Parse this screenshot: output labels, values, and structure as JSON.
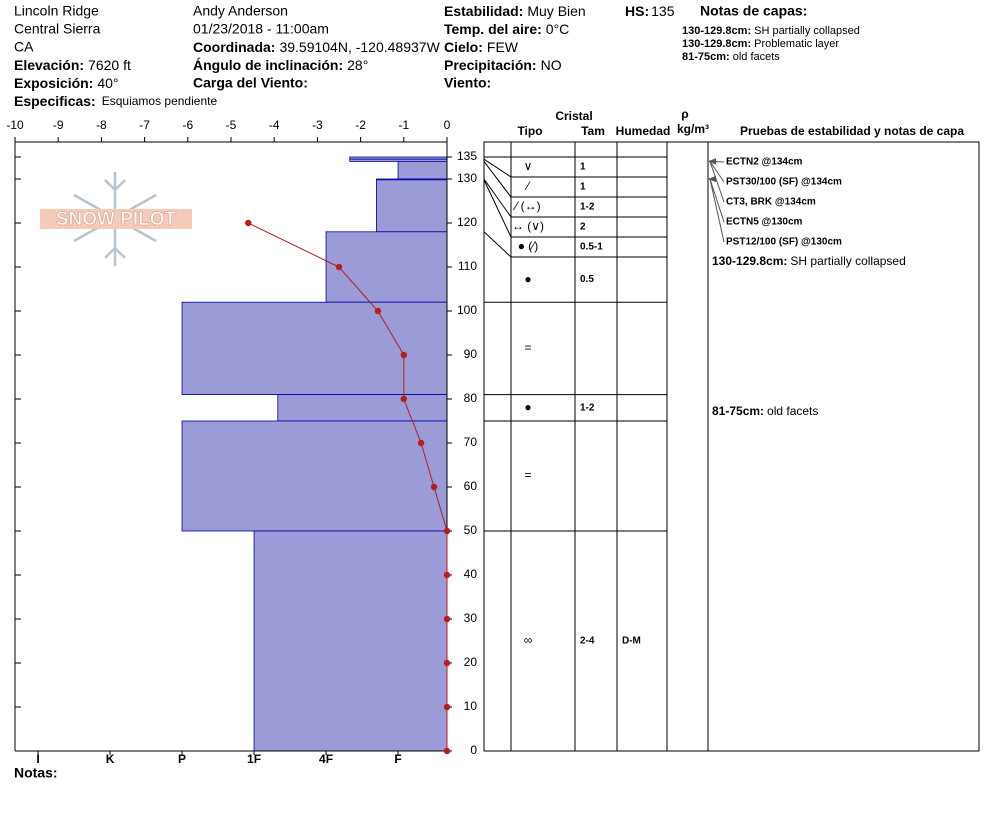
{
  "header": {
    "location": "Lincoln Ridge",
    "range": "Central Sierra",
    "state": "CA",
    "elevation_label": "Elevación:",
    "elevation": "7620 ft",
    "aspect_label": "Exposición:",
    "aspect": "40°",
    "specifics_label": "Especificas:",
    "specifics": "Esquiamos pendiente",
    "observer": "Andy Anderson",
    "datetime": "01/23/2018 - 11:00am",
    "coord_label": "Coordinada:",
    "coord": "39.59104N, -120.48937W",
    "slope_label": "Ángulo de inclinación:",
    "slope": "28°",
    "wind_load_label": "Carga del Viento:",
    "stability_label": "Estabilidad:",
    "stability": "Muy Bien",
    "air_temp_label": "Temp. del aire:",
    "air_temp": "0°C",
    "sky_label": "Cielo:",
    "sky": "FEW",
    "precip_label": "Precipitación:",
    "precip": "NO",
    "wind_label": "Viento:",
    "hs_label": "HS:",
    "hs": "135",
    "notes_title": "Notas de capas:",
    "layer_notes": [
      {
        "range": "130-129.8cm:",
        "text": "SH partially collapsed"
      },
      {
        "range": "130-129.8cm:",
        "text": "Problematic layer"
      },
      {
        "range": "81-75cm:",
        "text": "old facets"
      }
    ],
    "logo": "SNOW PILOT"
  },
  "chart_data": {
    "type": "snow_profile",
    "xlim": [
      -10,
      0
    ],
    "xticks": [
      -10,
      -9,
      -8,
      -7,
      -6,
      -5,
      -4,
      -3,
      -2,
      -1,
      0
    ],
    "ylim": [
      0,
      135
    ],
    "yticks": [
      0,
      10,
      20,
      30,
      40,
      50,
      60,
      70,
      80,
      90,
      100,
      110,
      120,
      130,
      135
    ],
    "hardness_lim": [
      6.32,
      0.32
    ],
    "hardness_ticks": [
      {
        "value": 6,
        "label": "I"
      },
      {
        "value": 5,
        "label": "K"
      },
      {
        "value": 4,
        "label": "P"
      },
      {
        "value": 3,
        "label": "1F"
      },
      {
        "value": 2,
        "label": "4F"
      },
      {
        "value": 1,
        "label": "F"
      }
    ],
    "bar_color": "#9b9bd7",
    "bar_edge": "#0000a0",
    "temperature": {
      "color": "#b81c1c",
      "heights": [
        120,
        110,
        100,
        90,
        80,
        70,
        60,
        50,
        40,
        30,
        20,
        10,
        0
      ],
      "values": [
        -4.6,
        -2.5,
        -1.6,
        -1.0,
        -1.0,
        -0.6,
        -0.3,
        0,
        0,
        0,
        0,
        0,
        0
      ]
    },
    "columns": {
      "crystal": "Cristal",
      "type": "Tipo",
      "size": "Tam",
      "moisture": "Humedad",
      "density": "ρ",
      "density_unit": "kg/m³",
      "tests": "Pruebas de estabilidad y notas de capa"
    },
    "layers": [
      {
        "top": 135,
        "bottom": 134.5,
        "hardness": 1.67,
        "grain": "∨",
        "size": "1"
      },
      {
        "top": 134.5,
        "bottom": 134,
        "hardness": 1.67,
        "grain": "⁄",
        "size": "1"
      },
      {
        "top": 134,
        "bottom": 130,
        "hardness": 1,
        "grain": "⁄ (↔)",
        "size": "1-2"
      },
      {
        "top": 130,
        "bottom": 129.8,
        "hardness": 1.3,
        "grain": "↔ (∨)",
        "size": "2"
      },
      {
        "top": 129.8,
        "bottom": 118,
        "hardness": 1.3,
        "grain": "● (⁄)",
        "size": "0.5-1"
      },
      {
        "top": 118,
        "bottom": 102,
        "hardness": 2,
        "grain": "●",
        "size": "0.5"
      },
      {
        "top": 102,
        "bottom": 81,
        "hardness": 4,
        "grain": "="
      },
      {
        "top": 81,
        "bottom": 75,
        "hardness": 2.67,
        "grain": "●",
        "size": "1-2"
      },
      {
        "top": 75,
        "bottom": 50,
        "hardness": 4,
        "grain": "="
      },
      {
        "top": 50,
        "bottom": 0,
        "hardness": 3,
        "grain": "∞",
        "size": "2-4",
        "moisture": "D-M"
      }
    ],
    "tests": [
      {
        "label": "ECTN2 @134cm",
        "height": 134
      },
      {
        "label": "PST30/100 (SF) @134cm",
        "height": 134
      },
      {
        "label": "CT3, BRK @134cm",
        "height": 134
      },
      {
        "label": "ECTN5 @130cm",
        "height": 130
      },
      {
        "label": "PST12/100 (SF) @130cm",
        "height": 130
      }
    ],
    "layer_comments": [
      {
        "range": "130-129.8cm:",
        "text": "SH partially collapsed"
      },
      {
        "range": "81-75cm:",
        "text": "old facets"
      }
    ],
    "notes_label": "Notas:"
  }
}
